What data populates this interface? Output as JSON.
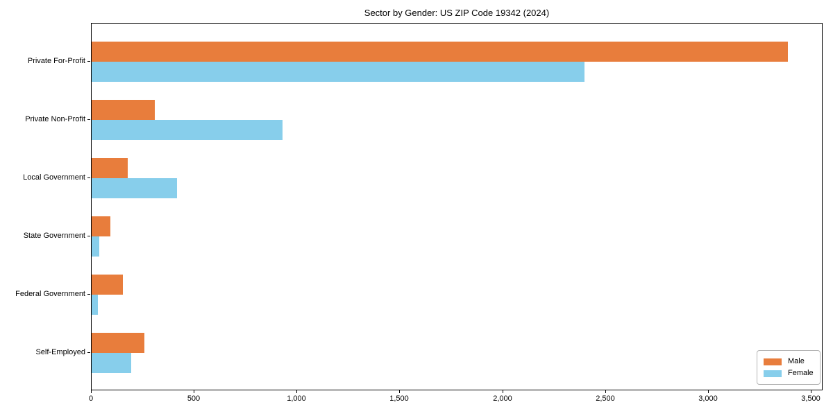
{
  "chart_data": {
    "type": "bar",
    "orientation": "horizontal",
    "title": "Sector by Gender: US ZIP Code 19342 (2024)",
    "categories": [
      "Private For-Profit",
      "Private Non-Profit",
      "Local Government",
      "State Government",
      "Federal Government",
      "Self-Employed"
    ],
    "series": [
      {
        "name": "Male",
        "color": "#e87d3c",
        "values": [
          3385,
          308,
          176,
          91,
          152,
          256
        ]
      },
      {
        "name": "Female",
        "color": "#87ceeb",
        "values": [
          2396,
          928,
          415,
          37,
          30,
          193
        ]
      }
    ],
    "xlabel": "",
    "ylabel": "",
    "xlim": [
      0,
      3557
    ],
    "x_ticks": [
      0,
      500,
      1000,
      1500,
      2000,
      2500,
      3000,
      3500
    ],
    "x_tick_labels": [
      "0",
      "500",
      "1,000",
      "1,500",
      "2,000",
      "2,500",
      "3,000",
      "3,500"
    ],
    "grid": false,
    "legend": {
      "position": "lower right",
      "entries": [
        "Male",
        "Female"
      ]
    }
  }
}
